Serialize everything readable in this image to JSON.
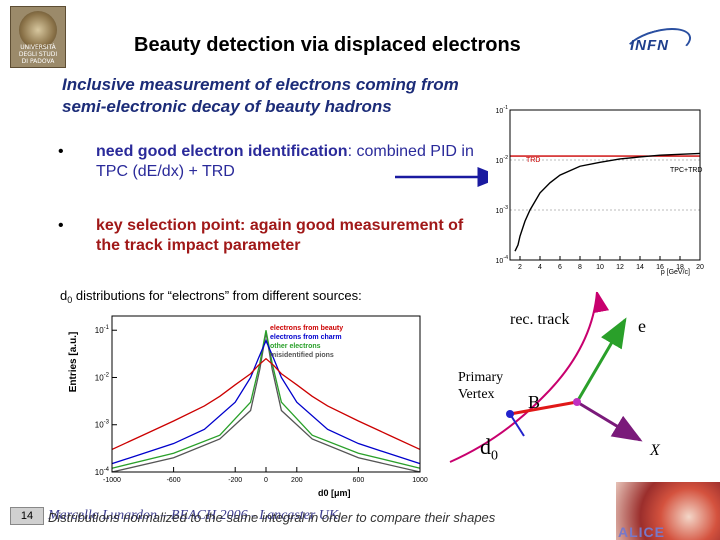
{
  "header": {
    "title": "Beauty detection via displaced electrons",
    "padova_logo_text": "UNIVERSITÀ\nDEGLI STUDI\nDI PADOVA",
    "infn_logo_text": "INFN"
  },
  "subtitle": {
    "line1": "Inclusive measurement of electrons coming from",
    "line2": "semi-electronic decay of beauty hadrons"
  },
  "bullets": [
    {
      "marker": "•",
      "key": "need good electron identification",
      "rest": ": combined PID in TPC (dE/dx) + TRD"
    },
    {
      "marker": "•",
      "key": "key selection point",
      "rest": ": again good measurement of the track impact parameter"
    }
  ],
  "d0_caption": {
    "prefix": "d",
    "sub": "0",
    "text": " distributions for “electrons” from different sources:"
  },
  "diagram": {
    "rec_track": "rec. track",
    "e": "e",
    "primary_vertex_1": "Primary",
    "primary_vertex_2": "Vertex",
    "B": "B",
    "d0": "d",
    "d0_sub": "0",
    "X": "X",
    "colors": {
      "rec_track": "#c8006e",
      "e": "#2aa02a",
      "B": "#e01818",
      "X": "#7a1a7a",
      "vertex": "#2222cc"
    }
  },
  "footer": {
    "page": "14",
    "author": "Marcello Lunardon – BEACH 2006 - Lancaster UK",
    "note": "Distributions normalized to the same integral in order to compare their shapes",
    "alice_text": "ALICE"
  },
  "chart_data": [
    {
      "type": "line",
      "title": "",
      "xlabel": "p [GeV/c]",
      "ylabel": "",
      "xticks": [
        "2",
        "4",
        "6",
        "8",
        "10",
        "12",
        "14",
        "16",
        "18",
        "20"
      ],
      "yticks": [
        "10^-4",
        "10^-3",
        "10^-2",
        "10^-1"
      ],
      "xlim": [
        1,
        20
      ],
      "ylim": [
        0.0001,
        0.1
      ],
      "yscale": "log",
      "annotations": [
        "TRD",
        "TPC+TRD"
      ],
      "series": [
        {
          "name": "TRD",
          "color": "#cc0000",
          "x": [
            1,
            2,
            4,
            6,
            8,
            10,
            12,
            14,
            16,
            18,
            20
          ],
          "values": [
            0.012,
            0.012,
            0.012,
            0.012,
            0.012,
            0.012,
            0.012,
            0.012,
            0.012,
            0.012,
            0.012
          ]
        },
        {
          "name": "TPC+TRD",
          "color": "#000000",
          "x": [
            1.5,
            1.8,
            2,
            2.5,
            3,
            4,
            5,
            6,
            8,
            10,
            12,
            14,
            16,
            18,
            20
          ],
          "values": [
            0.00015,
            0.0002,
            0.0003,
            0.0006,
            0.001,
            0.0022,
            0.0035,
            0.005,
            0.0075,
            0.009,
            0.0105,
            0.0115,
            0.0125,
            0.013,
            0.0135
          ]
        }
      ]
    },
    {
      "type": "line",
      "title": "",
      "xlabel": "d0 [μm]",
      "ylabel": "Entries [a.u.]",
      "xticks": [
        "-1000",
        "-600",
        "-200",
        "0",
        "200",
        "600",
        "1000"
      ],
      "yticks": [
        "10^-4",
        "10^-3",
        "10^-2",
        "10^-1"
      ],
      "xlim": [
        -1000,
        1000
      ],
      "ylim": [
        0.0001,
        0.2
      ],
      "yscale": "log",
      "series": [
        {
          "name": "electrons from beauty",
          "color": "#cc0000",
          "x": [
            -1000,
            -800,
            -600,
            -400,
            -300,
            -200,
            -100,
            -50,
            0,
            50,
            100,
            200,
            300,
            400,
            600,
            800,
            1000
          ],
          "values": [
            0.0003,
            0.0006,
            0.0012,
            0.0025,
            0.004,
            0.007,
            0.012,
            0.018,
            0.025,
            0.018,
            0.012,
            0.007,
            0.004,
            0.0025,
            0.0012,
            0.0006,
            0.0003
          ]
        },
        {
          "name": "electrons from charm",
          "color": "#0000cc",
          "x": [
            -1000,
            -600,
            -400,
            -200,
            -100,
            -50,
            0,
            50,
            100,
            200,
            400,
            600,
            1000
          ],
          "values": [
            0.00015,
            0.0004,
            0.0008,
            0.003,
            0.01,
            0.025,
            0.06,
            0.025,
            0.01,
            0.003,
            0.0008,
            0.0004,
            0.00015
          ]
        },
        {
          "name": "other electrons",
          "color": "#2aa02a",
          "x": [
            -1000,
            -600,
            -300,
            -100,
            -40,
            0,
            40,
            100,
            300,
            600,
            1000
          ],
          "values": [
            0.00012,
            0.00025,
            0.0006,
            0.003,
            0.02,
            0.1,
            0.02,
            0.003,
            0.0006,
            0.00025,
            0.00012
          ]
        },
        {
          "name": "misidentified pions",
          "color": "#555555",
          "x": [
            -1000,
            -600,
            -300,
            -100,
            -40,
            0,
            40,
            100,
            300,
            600,
            1000
          ],
          "values": [
            0.0001,
            0.0002,
            0.0005,
            0.002,
            0.015,
            0.09,
            0.015,
            0.002,
            0.0005,
            0.0002,
            0.0001
          ]
        }
      ]
    }
  ]
}
